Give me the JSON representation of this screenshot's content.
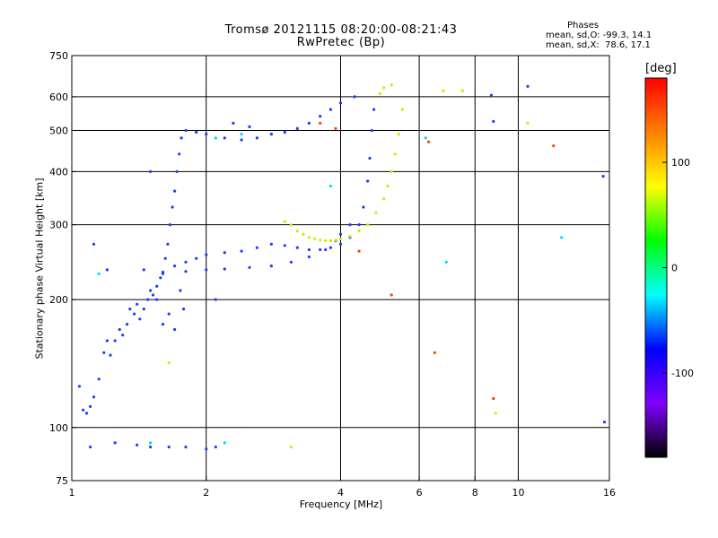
{
  "title_line1": "Tromsø 20121115 08:20:00-08:21:43",
  "title_line2": "RwPretec (Bp)",
  "phase_info": {
    "heading": "Phases",
    "o_mode": "mean, sd,O: -99.3, 14.1",
    "x_mode": "mean, sd,X:  78.6, 17.1"
  },
  "colorbar": {
    "title": "[deg]",
    "ticks": [
      100,
      0,
      -100
    ],
    "colors": [
      "#ff0000",
      "#ff8000",
      "#ffff00",
      "#00ff00",
      "#00ffff",
      "#0000ff",
      "#8000ff",
      "#000000"
    ]
  },
  "chart_data": {
    "type": "scatter",
    "title": "Tromsø 20121115 08:20:00-08:21:43",
    "subtitle": "RwPretec (Bp)",
    "xlabel": "Frequency [MHz]",
    "ylabel": "Stationary phase Virtual Height [km]",
    "x_scale": "log",
    "y_scale": "log",
    "xlim": [
      1,
      16
    ],
    "ylim": [
      75,
      750
    ],
    "x_ticks": [
      1,
      2,
      4,
      6,
      8,
      10,
      16
    ],
    "x_gridlines": [
      2,
      4,
      6,
      8,
      10
    ],
    "y_ticks": [
      75,
      100,
      200,
      300,
      400,
      500,
      600,
      750
    ],
    "y_gridlines": [
      100,
      200,
      300,
      400,
      500,
      600
    ],
    "grid": true,
    "series": [
      {
        "mode": "O",
        "color": "#1a3cff",
        "points": [
          [
            1.04,
            125
          ],
          [
            1.06,
            110
          ],
          [
            1.08,
            108
          ],
          [
            1.1,
            112
          ],
          [
            1.12,
            118
          ],
          [
            1.15,
            130
          ],
          [
            1.18,
            150
          ],
          [
            1.2,
            160
          ],
          [
            1.22,
            148
          ],
          [
            1.25,
            160
          ],
          [
            1.28,
            170
          ],
          [
            1.3,
            165
          ],
          [
            1.33,
            175
          ],
          [
            1.35,
            190
          ],
          [
            1.38,
            185
          ],
          [
            1.4,
            195
          ],
          [
            1.42,
            180
          ],
          [
            1.45,
            190
          ],
          [
            1.48,
            200
          ],
          [
            1.5,
            210
          ],
          [
            1.52,
            205
          ],
          [
            1.55,
            215
          ],
          [
            1.58,
            225
          ],
          [
            1.6,
            230
          ],
          [
            1.62,
            250
          ],
          [
            1.64,
            270
          ],
          [
            1.66,
            300
          ],
          [
            1.68,
            330
          ],
          [
            1.7,
            360
          ],
          [
            1.72,
            400
          ],
          [
            1.74,
            440
          ],
          [
            1.76,
            480
          ],
          [
            1.8,
            500
          ],
          [
            1.9,
            495
          ],
          [
            2.0,
            490
          ],
          [
            2.2,
            480
          ],
          [
            2.4,
            475
          ],
          [
            2.6,
            480
          ],
          [
            2.8,
            490
          ],
          [
            3.0,
            495
          ],
          [
            3.2,
            505
          ],
          [
            3.4,
            520
          ],
          [
            3.6,
            540
          ],
          [
            3.8,
            560
          ],
          [
            4.0,
            580
          ],
          [
            4.3,
            600
          ],
          [
            1.7,
            240
          ],
          [
            1.8,
            245
          ],
          [
            1.9,
            250
          ],
          [
            2.0,
            255
          ],
          [
            2.2,
            258
          ],
          [
            2.4,
            260
          ],
          [
            2.6,
            265
          ],
          [
            2.8,
            270
          ],
          [
            3.0,
            268
          ],
          [
            3.2,
            265
          ],
          [
            3.4,
            262
          ],
          [
            3.6,
            262
          ],
          [
            3.8,
            265
          ],
          [
            4.0,
            270
          ],
          [
            4.2,
            280
          ],
          [
            4.4,
            300
          ],
          [
            4.5,
            330
          ],
          [
            4.6,
            380
          ],
          [
            4.65,
            430
          ],
          [
            4.7,
            500
          ],
          [
            4.75,
            560
          ],
          [
            1.45,
            235
          ],
          [
            1.6,
            232
          ],
          [
            1.8,
            233
          ],
          [
            2.0,
            235
          ],
          [
            2.2,
            236
          ],
          [
            2.5,
            238
          ],
          [
            2.8,
            240
          ],
          [
            3.1,
            245
          ],
          [
            3.4,
            252
          ],
          [
            3.7,
            262
          ],
          [
            3.9,
            275
          ],
          [
            4.0,
            285
          ],
          [
            4.2,
            300
          ],
          [
            1.25,
            92
          ],
          [
            1.4,
            91
          ],
          [
            1.5,
            90
          ],
          [
            1.65,
            90
          ],
          [
            1.8,
            90
          ],
          [
            2.0,
            89
          ],
          [
            2.1,
            90
          ],
          [
            1.1,
            90
          ],
          [
            1.12,
            270
          ],
          [
            1.2,
            235
          ],
          [
            1.5,
            400
          ],
          [
            1.55,
            200
          ],
          [
            1.6,
            175
          ],
          [
            1.65,
            185
          ],
          [
            1.7,
            170
          ],
          [
            1.75,
            210
          ],
          [
            1.78,
            190
          ],
          [
            2.1,
            200
          ],
          [
            2.3,
            520
          ],
          [
            2.5,
            510
          ],
          [
            8.7,
            605
          ],
          [
            8.8,
            525
          ],
          [
            10.5,
            635
          ],
          [
            15.5,
            390
          ],
          [
            15.6,
            103
          ]
        ]
      },
      {
        "mode": "X",
        "color": "#c8f000",
        "points": [
          [
            3.0,
            305
          ],
          [
            3.1,
            300
          ],
          [
            3.2,
            290
          ],
          [
            3.3,
            285
          ],
          [
            3.4,
            280
          ],
          [
            3.5,
            278
          ],
          [
            3.6,
            276
          ],
          [
            3.7,
            275
          ],
          [
            3.8,
            275
          ],
          [
            3.9,
            276
          ],
          [
            4.0,
            278
          ],
          [
            4.2,
            282
          ],
          [
            4.4,
            290
          ],
          [
            4.6,
            300
          ],
          [
            4.8,
            320
          ],
          [
            5.0,
            345
          ],
          [
            5.1,
            370
          ],
          [
            5.2,
            400
          ],
          [
            5.3,
            440
          ],
          [
            5.4,
            490
          ],
          [
            4.9,
            610
          ],
          [
            5.0,
            630
          ],
          [
            5.2,
            640
          ],
          [
            5.5,
            560
          ],
          [
            6.8,
            620
          ],
          [
            7.5,
            620
          ],
          [
            10.5,
            520
          ],
          [
            8.9,
            108
          ],
          [
            3.1,
            90
          ],
          [
            1.65,
            142
          ]
        ]
      },
      {
        "mode": "other",
        "color": "#ff4000",
        "points": [
          [
            3.6,
            520
          ],
          [
            3.9,
            505
          ],
          [
            4.4,
            260
          ],
          [
            5.2,
            205
          ],
          [
            6.3,
            470
          ],
          [
            8.8,
            117
          ],
          [
            12.0,
            460
          ],
          [
            6.5,
            150
          ]
        ]
      },
      {
        "mode": "other",
        "color": "#00d8ff",
        "points": [
          [
            1.15,
            230
          ],
          [
            2.4,
            490
          ],
          [
            3.8,
            370
          ],
          [
            6.2,
            480
          ],
          [
            6.9,
            245
          ],
          [
            12.5,
            280
          ],
          [
            2.1,
            480
          ],
          [
            1.5,
            92
          ],
          [
            2.2,
            92
          ]
        ]
      }
    ]
  }
}
